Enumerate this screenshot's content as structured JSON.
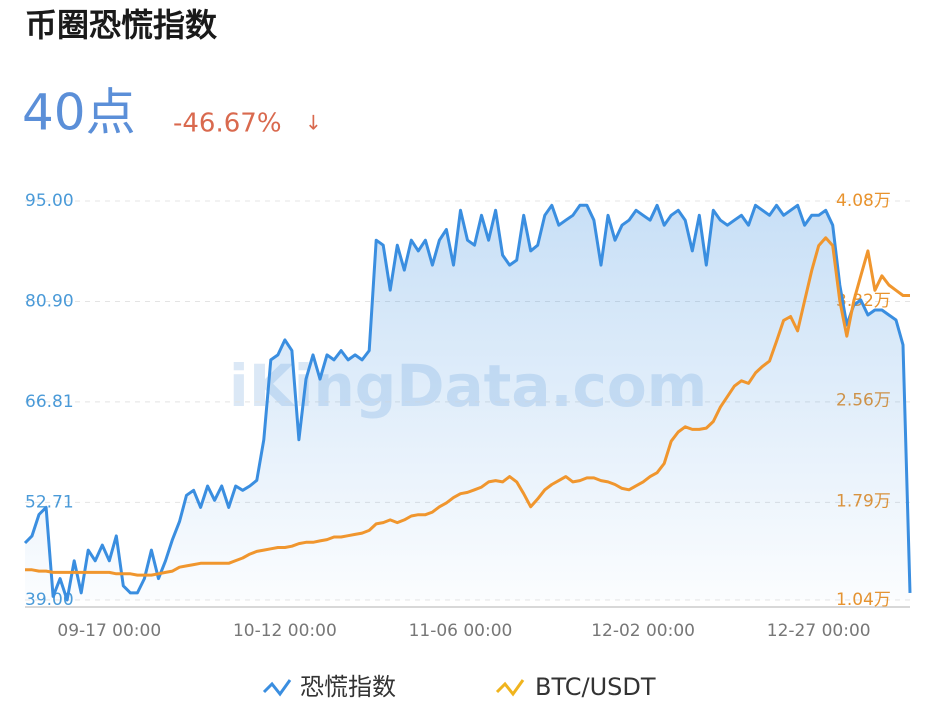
{
  "chart_data": {
    "type": "line",
    "title": "币圈恐慌指数",
    "current": "40点",
    "change": "-46.67%",
    "change_arrow": "↓",
    "watermark": "iKingData.com",
    "categories": [
      null,
      null,
      null,
      null,
      null,
      null,
      null,
      null,
      null,
      null,
      null,
      null,
      "09-17 00:00",
      null,
      null,
      null,
      null,
      null,
      null,
      null,
      null,
      null,
      null,
      null,
      null,
      null,
      null,
      null,
      null,
      null,
      null,
      null,
      null,
      null,
      null,
      null,
      null,
      "10-12 00:00",
      null,
      null,
      null,
      null,
      null,
      null,
      null,
      null,
      null,
      null,
      null,
      null,
      null,
      null,
      null,
      null,
      null,
      null,
      null,
      null,
      null,
      null,
      null,
      null,
      "11-06 00:00",
      null,
      null,
      null,
      null,
      null,
      null,
      null,
      null,
      null,
      null,
      null,
      null,
      null,
      null,
      null,
      null,
      null,
      null,
      null,
      null,
      null,
      null,
      null,
      null,
      null,
      "12-02 00:00",
      null,
      null,
      null,
      null,
      null,
      null,
      null,
      null,
      null,
      null,
      null,
      null,
      null,
      null,
      null,
      null,
      null,
      null,
      null,
      null,
      null,
      null,
      null,
      null,
      "12-27 00:00",
      null,
      null,
      null,
      null,
      null,
      null,
      null,
      null,
      null,
      null,
      null,
      null,
      null
    ],
    "series": [
      {
        "name": "恐慌指数",
        "color": "#3a8ee0",
        "axis": "y",
        "values": [
          47,
          48,
          51,
          52,
          39.5,
          42,
          39,
          44.5,
          40,
          46,
          44.5,
          46.7,
          44.5,
          48,
          41,
          40,
          40,
          42,
          46,
          42,
          44.5,
          47.5,
          50,
          53.7,
          54.4,
          52,
          55,
          53,
          55,
          52,
          55,
          54.4,
          55,
          55.8,
          61.5,
          72.7,
          73.4,
          75.5,
          74,
          61.5,
          70,
          73.4,
          70,
          73.4,
          72.7,
          74,
          72.7,
          73.4,
          72.7,
          74,
          89.5,
          88.8,
          82.5,
          88.8,
          85.3,
          89.5,
          88,
          89.5,
          86,
          89.5,
          91,
          86,
          93.7,
          89.5,
          88.8,
          93,
          89.5,
          93.7,
          87.4,
          86,
          86.7,
          93,
          88,
          88.8,
          93,
          94.4,
          91.6,
          92.3,
          93,
          94.4,
          94.4,
          92.3,
          86,
          93,
          89.5,
          91.6,
          92.3,
          93.7,
          93,
          92.3,
          94.4,
          91.6,
          93,
          93.7,
          92.3,
          88,
          93,
          86,
          93.7,
          92.3,
          91.6,
          92.3,
          93,
          91.6,
          94.4,
          93.7,
          93,
          94.4,
          93,
          93.7,
          94.4,
          91.6,
          93,
          93,
          93.7,
          91.6,
          83.2,
          77.6,
          80.4,
          81.1,
          79,
          79.7,
          79.7,
          79,
          78.3,
          74.8,
          40
        ]
      },
      {
        "name": "BTC/USDT",
        "color": "#f0962e",
        "axis": "y2",
        "values": [
          1.27,
          1.27,
          1.26,
          1.26,
          1.25,
          1.25,
          1.25,
          1.25,
          1.25,
          1.25,
          1.25,
          1.25,
          1.25,
          1.24,
          1.24,
          1.24,
          1.23,
          1.23,
          1.23,
          1.24,
          1.25,
          1.26,
          1.29,
          1.3,
          1.31,
          1.32,
          1.32,
          1.32,
          1.32,
          1.32,
          1.34,
          1.36,
          1.39,
          1.41,
          1.42,
          1.43,
          1.44,
          1.44,
          1.45,
          1.47,
          1.48,
          1.48,
          1.49,
          1.5,
          1.52,
          1.52,
          1.53,
          1.54,
          1.55,
          1.57,
          1.62,
          1.63,
          1.65,
          1.63,
          1.65,
          1.68,
          1.69,
          1.69,
          1.71,
          1.75,
          1.78,
          1.82,
          1.85,
          1.86,
          1.88,
          1.9,
          1.94,
          1.95,
          1.94,
          1.98,
          1.94,
          1.85,
          1.75,
          1.81,
          1.88,
          1.92,
          1.95,
          1.98,
          1.94,
          1.95,
          1.97,
          1.97,
          1.95,
          1.94,
          1.92,
          1.89,
          1.88,
          1.91,
          1.94,
          1.98,
          2.01,
          2.08,
          2.25,
          2.32,
          2.36,
          2.34,
          2.34,
          2.35,
          2.4,
          2.51,
          2.59,
          2.67,
          2.71,
          2.69,
          2.77,
          2.82,
          2.86,
          3.01,
          3.17,
          3.2,
          3.09,
          3.32,
          3.55,
          3.74,
          3.8,
          3.74,
          3.32,
          3.05,
          3.32,
          3.51,
          3.7,
          3.4,
          3.51,
          3.44,
          3.4,
          3.36,
          3.36
        ]
      }
    ],
    "ylim": [
      39,
      95
    ],
    "yticks": [
      {
        "value": 95,
        "label": "95.00"
      },
      {
        "value": 80.9,
        "label": "80.90"
      },
      66.81,
      52.71,
      {
        "value": 39,
        "label": "39.00"
      }
    ],
    "y2lim": [
      1.04,
      4.08
    ],
    "y2ticks": [
      {
        "value": 4.08,
        "label": "4.08万"
      },
      {
        "value": 3.32,
        "label": "3.32万"
      },
      {
        "value": 2.56,
        "label": "2.56万"
      },
      {
        "value": 1.79,
        "label": "1.79万"
      },
      {
        "value": 1.04,
        "label": "1.04万"
      }
    ],
    "grid": true,
    "legend": "bottom"
  }
}
